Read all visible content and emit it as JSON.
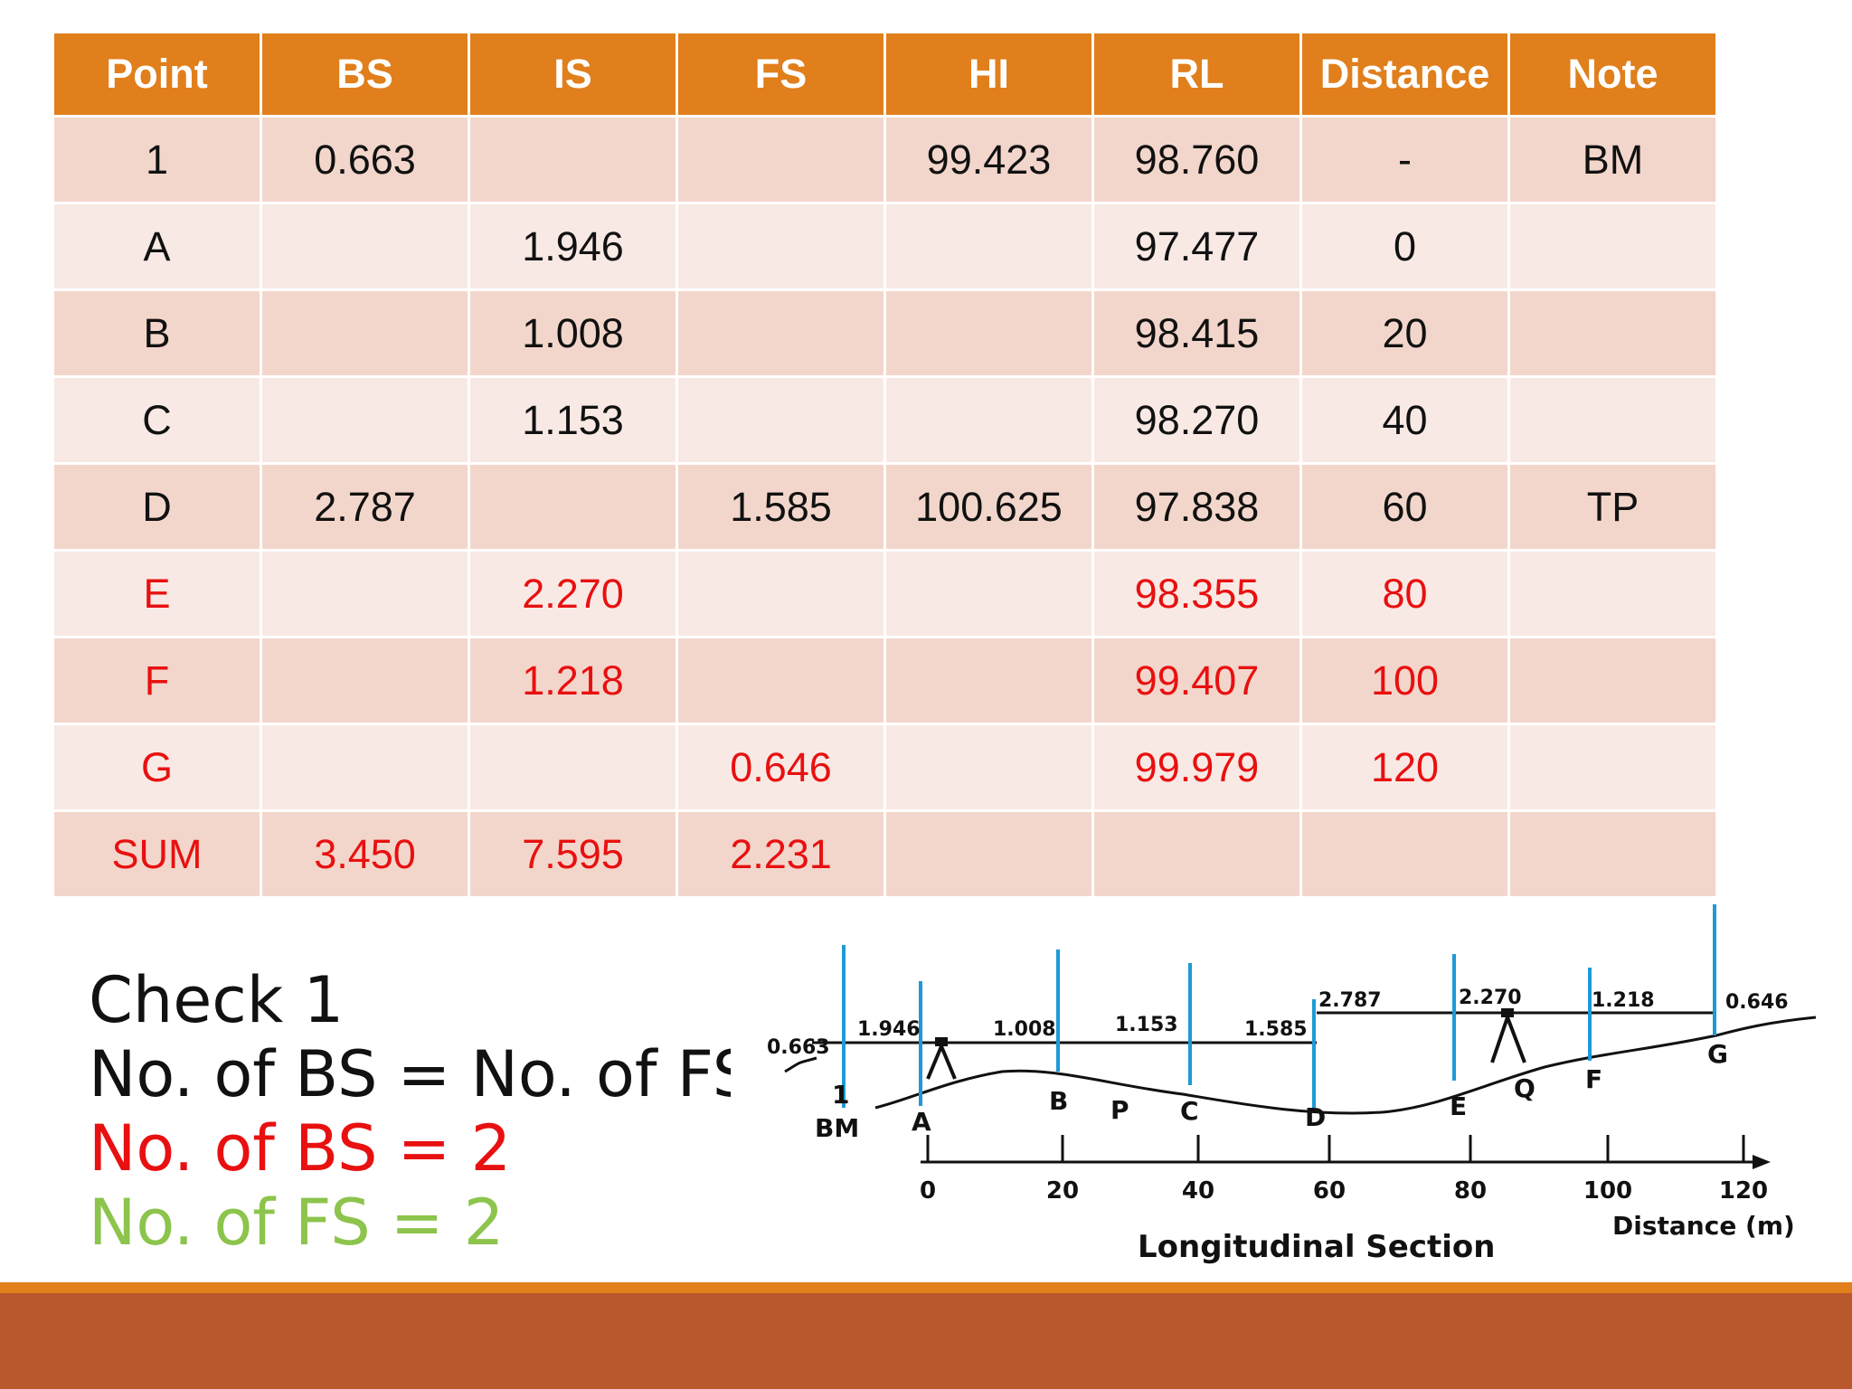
{
  "table": {
    "headers": [
      "Point",
      "BS",
      "IS",
      "FS",
      "HI",
      "RL",
      "Distance",
      "Note"
    ],
    "rows": [
      [
        "1",
        "0.663",
        "",
        "",
        "99.423",
        "98.760",
        "-",
        "BM"
      ],
      [
        "A",
        "",
        "1.946",
        "",
        "",
        "97.477",
        "0",
        ""
      ],
      [
        "B",
        "",
        "1.008",
        "",
        "",
        "98.415",
        "20",
        ""
      ],
      [
        "C",
        "",
        "1.153",
        "",
        "",
        "98.270",
        "40",
        ""
      ],
      [
        "D",
        "2.787",
        "",
        "1.585",
        "100.625",
        "97.838",
        "60",
        "TP"
      ],
      [
        "E",
        "",
        "2.270",
        "",
        "",
        "98.355",
        "80",
        ""
      ],
      [
        "F",
        "",
        "1.218",
        "",
        "",
        "99.407",
        "100",
        ""
      ],
      [
        "G",
        "",
        "",
        "0.646",
        "",
        "99.979",
        "120",
        ""
      ],
      [
        "SUM",
        "3.450",
        "7.595",
        "2.231",
        "",
        "",
        "",
        ""
      ]
    ]
  },
  "check": {
    "title": "Check 1",
    "rule": "No. of BS = No. of FS",
    "bs_count": "No. of BS = 2",
    "fs_count": "No. of FS = 2"
  },
  "colors": {
    "header": "#e07f1b",
    "row_odd": "#f3d6cb",
    "row_even": "#f8e9e5",
    "highlight_red": "#e81010",
    "green": "#8cc44c",
    "staff_blue": "#1e9ad6",
    "bottom_band": "#b8582c"
  },
  "diagram": {
    "readings": [
      "0.663",
      "1.946",
      "1.008",
      "1.153",
      "1.585",
      "2.787",
      "2.270",
      "1.218",
      "0.646"
    ],
    "point_labels": [
      "1",
      "BM",
      "A",
      "B",
      "P",
      "C",
      "D",
      "E",
      "Q",
      "F",
      "G"
    ],
    "axis_ticks": [
      "0",
      "20",
      "40",
      "60",
      "80",
      "100",
      "120"
    ],
    "axis_label": "Distance (m)",
    "title": "Longitudinal Section"
  }
}
